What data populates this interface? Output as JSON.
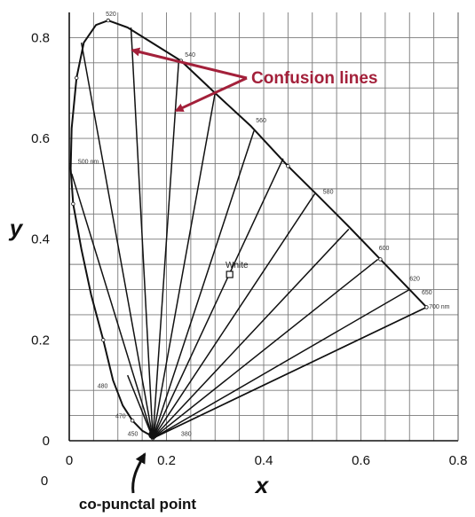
{
  "chart_data": {
    "type": "line",
    "title": "",
    "xlabel": "x",
    "ylabel": "y",
    "xlim": [
      0,
      0.8
    ],
    "ylim": [
      0,
      0.85
    ],
    "x_ticks": [
      "0",
      "0.2",
      "0.4",
      "0.6",
      "0.8"
    ],
    "y_ticks": [
      "0",
      "0.2",
      "0.4",
      "0.6",
      "0.8"
    ],
    "corner_label": "0",
    "grid": true,
    "locus": [
      [
        0.172,
        0.005
      ],
      [
        0.165,
        0.012
      ],
      [
        0.15,
        0.02
      ],
      [
        0.13,
        0.04
      ],
      [
        0.11,
        0.07
      ],
      [
        0.09,
        0.12
      ],
      [
        0.07,
        0.2
      ],
      [
        0.045,
        0.29
      ],
      [
        0.025,
        0.38
      ],
      [
        0.008,
        0.47
      ],
      [
        0.003,
        0.54
      ],
      [
        0.005,
        0.62
      ],
      [
        0.015,
        0.72
      ],
      [
        0.03,
        0.79
      ],
      [
        0.055,
        0.825
      ],
      [
        0.08,
        0.834
      ],
      [
        0.12,
        0.82
      ],
      [
        0.17,
        0.79
      ],
      [
        0.23,
        0.754
      ],
      [
        0.3,
        0.69
      ],
      [
        0.374,
        0.624
      ],
      [
        0.45,
        0.545
      ],
      [
        0.513,
        0.485
      ],
      [
        0.575,
        0.425
      ],
      [
        0.64,
        0.36
      ],
      [
        0.69,
        0.31
      ],
      [
        0.715,
        0.285
      ],
      [
        0.735,
        0.265
      ]
    ],
    "purple_line": [
      [
        0.735,
        0.265
      ],
      [
        0.172,
        0.005
      ]
    ],
    "copunctal_point": [
      0.172,
      0.005
    ],
    "confusion_line_ends": [
      [
        0.005,
        0.53
      ],
      [
        0.025,
        0.79
      ],
      [
        0.127,
        0.82
      ],
      [
        0.225,
        0.75
      ],
      [
        0.3,
        0.69
      ],
      [
        0.38,
        0.615
      ],
      [
        0.44,
        0.56
      ],
      [
        0.505,
        0.49
      ],
      [
        0.575,
        0.42
      ],
      [
        0.635,
        0.36
      ],
      [
        0.7,
        0.3
      ],
      [
        0.735,
        0.265
      ],
      [
        0.12,
        0.13
      ]
    ],
    "wavelength_labels": [
      {
        "text": "520",
        "x": 0.075,
        "y": 0.843
      },
      {
        "text": "540",
        "x": 0.238,
        "y": 0.762
      },
      {
        "text": "560",
        "x": 0.384,
        "y": 0.632
      },
      {
        "text": "580",
        "x": 0.522,
        "y": 0.49
      },
      {
        "text": "600",
        "x": 0.637,
        "y": 0.378
      },
      {
        "text": "620",
        "x": 0.7,
        "y": 0.318
      },
      {
        "text": "650",
        "x": 0.725,
        "y": 0.29
      },
      {
        "text": "700 nm",
        "x": 0.74,
        "y": 0.262
      },
      {
        "text": "500 nm",
        "x": 0.018,
        "y": 0.55
      },
      {
        "text": "480",
        "x": 0.058,
        "y": 0.105
      },
      {
        "text": "470",
        "x": 0.095,
        "y": 0.045
      },
      {
        "text": "450",
        "x": 0.12,
        "y": 0.01
      },
      {
        "text": "380",
        "x": 0.23,
        "y": 0.01
      }
    ],
    "white_point": {
      "label": "White",
      "x": 0.33,
      "y": 0.33
    },
    "annotations": {
      "confusion": {
        "text": "Confusion lines",
        "x": 0.37,
        "y": 0.79,
        "arrows": [
          [
            0.13,
            0.775
          ],
          [
            0.22,
            0.655
          ]
        ]
      },
      "copunctal": {
        "text": "co-punctal point"
      }
    }
  }
}
